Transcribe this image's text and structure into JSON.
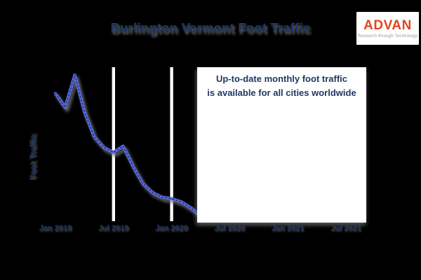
{
  "title": "Burlington Vermont Foot Traffic",
  "logo": {
    "brand": "ADVAN",
    "tagline": "Research through Technology",
    "brand_color": "#e2451d",
    "tagline_color": "#97979c",
    "background": "#ffffff"
  },
  "annotation": {
    "line1": "Up-to-date monthly foot traffic",
    "line2": "is available for all cities worldwide",
    "text_color": "#1f3864",
    "background": "#ffffff"
  },
  "colors": {
    "page_background": "#000000",
    "title_text": "#1f3864",
    "tick_text": "#1f3864",
    "gridline": "#ffffff",
    "line": "#5a67df",
    "marker": "#1f3864"
  },
  "chart_data": {
    "type": "line",
    "title": "Burlington Vermont Foot Traffic",
    "xlabel": "",
    "ylabel": "Foot Traffic",
    "x_tick_labels": [
      "Jan 2019",
      "Jul 2019",
      "Jan 2020",
      "Jul 2020",
      "Jan 2021",
      "Jul 2021"
    ],
    "y_tick_labels": [],
    "grid": "vertical white gridlines at Jul 2019 and Jan 2020; later gridlines hidden by white overlay",
    "legend": false,
    "units": "relative foot-traffic index 0-100 (no numeric y-axis shown)",
    "series": [
      {
        "name": "Foot Traffic",
        "x": [
          "Jan 2019",
          "Feb 2019",
          "Mar 2019",
          "Apr 2019",
          "May 2019",
          "Jun 2019",
          "Jul 2019",
          "Aug 2019",
          "Sep 2019",
          "Oct 2019",
          "Nov 2019",
          "Dec 2019",
          "Jan 2020",
          "Feb 2020",
          "Mar 2020",
          "Apr 2020"
        ],
        "values": [
          83,
          74,
          95,
          71,
          55,
          48,
          45,
          49,
          36,
          25,
          19,
          16,
          15,
          13,
          9,
          4
        ]
      }
    ],
    "ylim": [
      0,
      100
    ],
    "notes_visible_on_chart": "Right portion of the plot is covered by a white box containing the annotation text"
  }
}
